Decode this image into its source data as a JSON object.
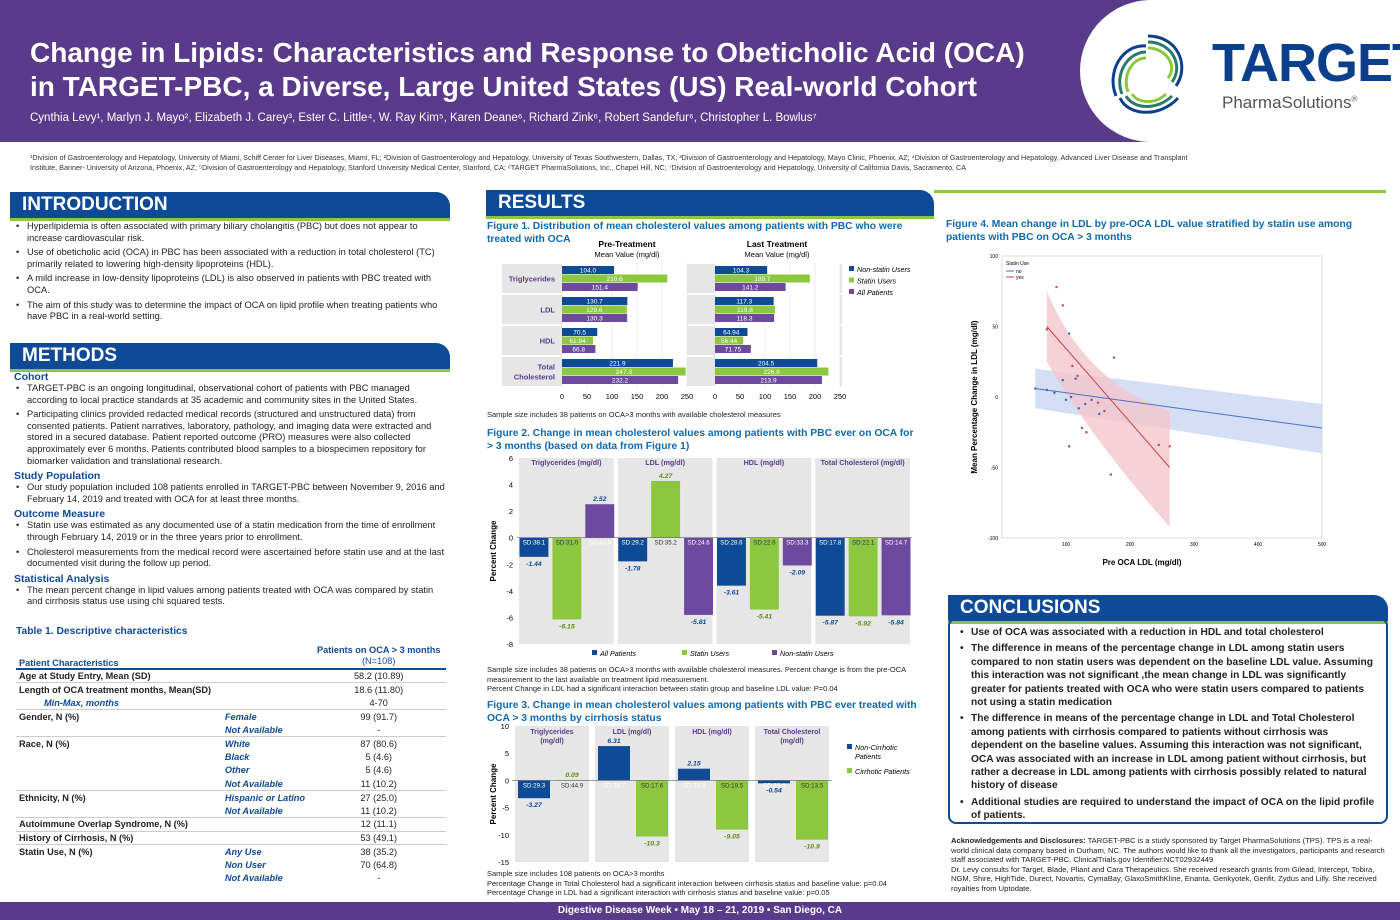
{
  "header": {
    "title_line1": "Change in Lipids: Characteristics and Response to Obeticholic Acid (OCA)",
    "title_line2": "in TARGET-PBC, a Diverse, Large United States (US) Real-world Cohort",
    "authors": "Cynthia Levy¹, Marlyn J. Mayo², Elizabeth J. Carey³, Ester C. Little⁴, W. Ray Kim⁵, Karen Deane⁶, Richard Zink⁶, Robert Sandefur⁶, Christopher L. Bowlus⁷",
    "affiliations": "¹Division of Gastroenterology and Hepatology, University of Miami, Schiff Center for Liver Diseases, Miami, FL; ²Division of Gastroenterology and Hepatology, University of Texas Southwestern, Dallas, TX; ³Division of Gastroenterology and Hepatology, Mayo Clinic, Phoenix, AZ; ⁴Division of Gastroenterology and Hepatology, Advanced Liver Disease and Transplant Institute, Banner- University of Arizona, Phoenix, AZ; ⁵Division of Gastroenterology and Hepatology, Stanford University Medical Center, Stanford, CA; ⁶TARGET PharmaSolutions, Inc., Chapel Hill, NC; ⁷Division of Gastroenterology and Hepatology, University of California Davis, Sacramento, CA",
    "brand": "TARGET",
    "brand_sub": "PharmaSolutions",
    "brand_mark": "®"
  },
  "colors": {
    "purple": "#5a3a8a",
    "blue": "#0e4a96",
    "green": "#8dc63f",
    "series_purple": "#6d4aa0"
  },
  "intro": {
    "heading": "INTRODUCTION",
    "bullets": [
      "Hyperlipidemia is often associated with primary biliary cholangitis (PBC) but does not appear to increase cardiovascular risk.",
      "Use of obeticholic acid (OCA) in PBC has been associated with a reduction in total cholesterol (TC) primarily related to lowering high-density lipoproteins (HDL).",
      "A mild increase in low-density lipoproteins (LDL) is also observed in patients with PBC treated with OCA.",
      "The aim of this study was to determine the impact of OCA on lipid profile when treating patients who have PBC in a real-world setting."
    ]
  },
  "methods": {
    "heading": "METHODS",
    "cohort_h": "Cohort",
    "cohort": [
      "TARGET-PBC is an ongoing longitudinal, observational cohort of patients with PBC  managed according to local practice standards at  35 academic and community sites in the United States.",
      "Participating clinics provided redacted medical records (structured and unstructured data) from consented patients.  Patient narratives,  laboratory, pathology, and imaging data were extracted and stored in a secured database. Patient reported outcome (PRO) measures were also collected approximately ever 6 months. Patients contributed blood samples to a biospecimen repository for biomarker validation and translational research."
    ],
    "pop_h": "Study Population",
    "pop": [
      "Our study population included 108 patients enrolled in TARGET-PBC between November 9, 2016 and February 14, 2019 and treated with OCA for at least three months."
    ],
    "outcome_h": "Outcome Measure",
    "outcome": [
      "Statin use was estimated as any documented use of a statin medication from the time of enrollment through February 14, 2019 or in the three years prior to enrollment.",
      "Cholesterol measurements from the medical record were ascertained before statin use and at the last documented visit during the follow up period."
    ],
    "stat_h": "Statistical Analysis",
    "stat": [
      "The mean percent change in lipid values among patients treated with OCA was compared by statin and cirrhosis status use using chi squared tests."
    ]
  },
  "table": {
    "title": "Table 1. Descriptive characteristics",
    "col_header": "Patients on OCA > 3 months",
    "col_n": "(N=108)",
    "row_header": "Patient  Characteristics",
    "rows": [
      {
        "label": "Age at Study Entry, Mean (SD)",
        "sub": "",
        "value": "58.2 (10.89)",
        "bold": true
      },
      {
        "label": "Length of OCA treatment months, Mean(SD)",
        "sub": "",
        "value": "18.6 (11.80)",
        "bold": true
      },
      {
        "label": "Min-Max, months",
        "sub": "",
        "value": "4-70",
        "bold": false,
        "indent": true
      },
      {
        "label": "Gender, N (%)",
        "sub": "Female",
        "value": "99 (91.7)",
        "bold": true
      },
      {
        "label": "",
        "sub": "Not Available",
        "value": "-",
        "bold": false
      },
      {
        "label": "Race, N (%)",
        "sub": "White",
        "value": "87 (80.6)",
        "bold": true
      },
      {
        "label": "",
        "sub": "Black",
        "value": "5 (4.6)",
        "bold": false
      },
      {
        "label": "",
        "sub": "Other",
        "value": "5 (4.6)",
        "bold": false
      },
      {
        "label": "",
        "sub": "Not Available",
        "value": "11 (10.2)",
        "bold": false
      },
      {
        "label": "Ethnicity, N (%)",
        "sub": "Hispanic or Latino",
        "value": "27 (25.0)",
        "bold": true
      },
      {
        "label": "",
        "sub": "Not Available",
        "value": "11 (10.2)",
        "bold": false
      },
      {
        "label": "Autoimmune Overlap Syndrome, N (%)",
        "sub": "",
        "value": "12 (11.1)",
        "bold": true
      },
      {
        "label": "History of Cirrhosis, N (%)",
        "sub": "",
        "value": "53 (49.1)",
        "bold": true
      },
      {
        "label": "Statin Use, N (%)",
        "sub": "Any Use",
        "value": "38 (35.2)",
        "bold": true
      },
      {
        "label": "",
        "sub": "Non User",
        "value": "70 (64.8)",
        "bold": false
      },
      {
        "label": "",
        "sub": "Not Available",
        "value": "-",
        "bold": false
      }
    ]
  },
  "results": {
    "heading": "RESULTS",
    "fig1_title": "Figure 1. Distribution of mean cholesterol values among patients with PBC who were treated with OCA",
    "fig1_pre": "Pre-Treatment",
    "fig1_last": "Last Treatment",
    "fig1_unit": "Mean Value (mg/dl)",
    "fig1_note": "Sample size includes 38 patients on OCA>3 months with available cholesterol measures",
    "fig2_title": "Figure 2. Change in mean cholesterol values among patients with PBC ever on OCA for > 3 months (based on data from Figure 1)",
    "fig2_note1": "Sample size includes 38 patients on OCA>3 months with available cholesterol measures. Percent change is from the pre-OCA measurement to the last available on treatment lipid measurement.",
    "fig2_note2": "Percent Change in LDL had a significant interaction between statin group and baseline LDL value: P=0.04",
    "fig3_title": "Figure 3. Change in mean cholesterol values among patients with PBC ever treated with OCA > 3 months by cirrhosis status",
    "fig3_note1": "Sample size includes 108 patients on OCA>3 months",
    "fig3_note2": "Percentage Change in Total Cholesterol had a significant interaction between cirrhosis status and baseline value: p=0.04",
    "fig3_note3": "Percentage Change in LDL had a significant interaction with cirrhosis status and baseline value: p=0.05",
    "fig4_title": "Figure 4. Mean change in LDL by pre-OCA LDL value stratified by statin use among patients with PBC on OCA > 3 months"
  },
  "chart_data": [
    {
      "id": "fig1",
      "type": "bar",
      "orientation": "horizontal",
      "categories": [
        "Triglycerides",
        "LDL",
        "HDL",
        "Total Cholesterol"
      ],
      "panels": [
        {
          "name": "Pre-Treatment",
          "series": [
            {
              "name": "Non-statin Users",
              "values": [
                104.0,
                130.7,
                70.5,
                221.9
              ]
            },
            {
              "name": "Statin Users",
              "values": [
                210.6,
                129.6,
                61.94,
                247.3
              ]
            },
            {
              "name": "All Patients",
              "values": [
                151.4,
                130.3,
                66.8,
                232.2
              ]
            }
          ]
        },
        {
          "name": "Last Treatment",
          "series": [
            {
              "name": "Non-statin Users",
              "values": [
                104.3,
                117.3,
                64.94,
                204.5
              ]
            },
            {
              "name": "Statin Users",
              "values": [
                189.7,
                119.8,
                56.44,
                226.8
              ]
            },
            {
              "name": "All Patients",
              "values": [
                141.2,
                118.3,
                71.75,
                213.9
              ]
            }
          ]
        }
      ],
      "labels": [
        [
          "104.0",
          "210.6",
          "151.4",
          "130.7",
          "129.6",
          "130.3",
          "70.5",
          "61.94",
          "66.8",
          "221.9",
          "247.3",
          "232.2"
        ],
        [
          "104.3",
          "189.7",
          "141.2",
          "117.3",
          "119.8",
          "118.3",
          "64.94",
          "56.44",
          "71.75",
          "204.5",
          "226.8",
          "213.9"
        ]
      ],
      "xlim": [
        0,
        250
      ],
      "xticks": [
        "0",
        "50",
        "100",
        "150",
        "200",
        "250"
      ],
      "legend": [
        "Non-statin Users",
        "Statin Users",
        "All Patients"
      ]
    },
    {
      "id": "fig2",
      "type": "bar",
      "categories": [
        "Triglycerides (mg/dl)",
        "LDL (mg/dl)",
        "HDL (mg/dl)",
        "Total Cholesterol (mg/dl)"
      ],
      "series": [
        {
          "name": "All Patients",
          "values": [
            -1.44,
            -1.78,
            -3.61,
            -5.87
          ],
          "labels": [
            "-1.44",
            "-1.78",
            "-3.61",
            "-5.87"
          ],
          "sd": [
            "SD:38.1",
            "SD:29.2",
            "SD:28.6",
            "SD:17.8"
          ]
        },
        {
          "name": "Statin Users",
          "values": [
            -6.15,
            4.27,
            -5.41,
            -5.92
          ],
          "labels": [
            "-6.15",
            "4.27",
            "-5.41",
            "-5.92"
          ],
          "sd": [
            "SD:31.0",
            "SD:35.2",
            "SD:22.6",
            "SD:22.1"
          ]
        },
        {
          "name": "Non-statin Users",
          "values": [
            2.52,
            -5.81,
            -2.09,
            -5.84
          ],
          "labels": [
            "2.52",
            "-5.81",
            "-2.09",
            "-5.84"
          ],
          "sd": [
            "SD:43.6",
            "SD:24.6",
            "SD:33.3",
            "SD:14.7"
          ]
        }
      ],
      "ylabel": "Percent Change",
      "ylim": [
        -8,
        6
      ],
      "yticks": [
        "6",
        "4",
        "2",
        "0",
        "-2",
        "-4",
        "-6",
        "-8"
      ]
    },
    {
      "id": "fig3",
      "type": "bar",
      "categories": [
        "Triglycerides (mg/dl)",
        "LDL (mg/dl)",
        "HDL (mg/dl)",
        "Total Cholesterol (mg/dl)"
      ],
      "series": [
        {
          "name": "Non-Cirrhotic Patients",
          "values": [
            -3.27,
            6.31,
            2.15,
            -0.54
          ],
          "labels": [
            "-3.27",
            "6.31",
            "2.15",
            "-0.54"
          ],
          "sd": [
            "SD:29.3",
            "SD:35.7",
            "SD:35.6",
            "SD:20.4"
          ]
        },
        {
          "name": "Cirrhotic Patients",
          "values": [
            0.09,
            -10.3,
            -9.05,
            -10.9
          ],
          "labels": [
            "0.09",
            "-10.3",
            "-9.05",
            "-10.9"
          ],
          "sd": [
            "SD:44.9",
            "SD:17.6",
            "SD:19.5",
            "SD:13.5"
          ]
        }
      ],
      "ylabel": "Percent Change",
      "ylim": [
        -15,
        10
      ],
      "yticks": [
        "10",
        "5",
        "0",
        "-5",
        "-10",
        "-15"
      ]
    },
    {
      "id": "fig4",
      "type": "scatter",
      "xlabel": "Pre OCA LDL (mg/dl)",
      "ylabel": "Mean Percentage Change in LDL (mg/dl)",
      "xlim": [
        0,
        500
      ],
      "ylim": [
        -100,
        100
      ],
      "xticks": [
        "100",
        "200",
        "300",
        "400",
        "500"
      ],
      "yticks": [
        "100",
        "50",
        "0",
        "-50",
        "-100"
      ],
      "legend_title": "Statin Use",
      "series": [
        {
          "name": "no",
          "points": [
            [
              52,
              6
            ],
            [
              70,
              5
            ],
            [
              82,
              3
            ],
            [
              95,
              12
            ],
            [
              100,
              -2
            ],
            [
              108,
              0
            ],
            [
              115,
              13
            ],
            [
              120,
              -8
            ],
            [
              130,
              -5
            ],
            [
              140,
              -2
            ],
            [
              152,
              -12
            ],
            [
              175,
              28
            ],
            [
              105,
              -35
            ],
            [
              170,
              -55
            ],
            [
              105,
              45
            ]
          ]
        },
        {
          "name": "yes",
          "points": [
            [
              70,
              48
            ],
            [
              85,
              78
            ],
            [
              95,
              65
            ],
            [
              110,
              22
            ],
            [
              118,
              15
            ],
            [
              125,
              -22
            ],
            [
              132,
              -25
            ],
            [
              150,
              -4
            ],
            [
              160,
              -10
            ],
            [
              245,
              -34
            ],
            [
              262,
              -35
            ]
          ]
        }
      ]
    }
  ],
  "conclusions": {
    "heading": "CONCLUSIONS",
    "bullets": [
      "Use of OCA was associated with a reduction in HDL and total cholesterol",
      "The difference in means of the percentage change in LDL among statin users compared to non statin users was dependent on the baseline LDL value. Assuming this interaction was not significant ,the mean change in LDL was significantly greater for patients treated with OCA who were statin users compared to patients not using a statin medication",
      "The difference in means of the percentage change in LDL and Total Cholesterol among patients with cirrhosis compared to patients without cirrhosis was dependent on the baseline values.  Assuming this interaction was not significant, OCA was associated with an increase in LDL among patient without cirrhosis, but rather a decrease in LDL among patients with cirrhosis possibly related to natural history of disease",
      "Additional studies are required to understand the impact of OCA on the lipid profile of patients."
    ]
  },
  "ack": {
    "heading": "Acknowledgements and Disclosures:",
    "text1": "TARGET-PBC is a study sponsored by Target PharmaSolutions (TPS). TPS is a real-world clinical data company based in Durham, NC. The authors would like to thank all the investigators, participants and research staff associated with TARGET-PBC. ClinicalTrials.gov Identifier:NCT02932449",
    "text2": "Dr. Levy consults for Target, Blade, Pliant and Cara Therapeutics. She received research grants from Gilead, Intercept, Tobira, NGM, Shire, HighTide, Durect, Novartis, CymaBay, GlaxoSmithKline, Enanta, Genkyotek, Genfit, Zydus and Lilly. She received royalties from Uptodate."
  },
  "footer": "Digestive Disease Week  •  May 18 – 21, 2019  •  San Diego, CA"
}
